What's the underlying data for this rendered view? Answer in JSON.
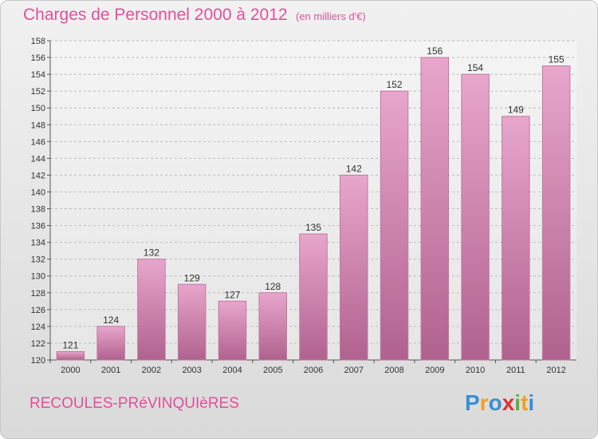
{
  "chart_data": {
    "type": "bar",
    "title": "Charges de Personnel 2000 à 2012",
    "subtitle": "(en milliers d'€)",
    "categories": [
      "2000",
      "2001",
      "2002",
      "2003",
      "2004",
      "2005",
      "2006",
      "2007",
      "2008",
      "2009",
      "2010",
      "2011",
      "2012"
    ],
    "values": [
      121,
      124,
      132,
      129,
      127,
      128,
      135,
      142,
      152,
      156,
      154,
      149,
      155
    ],
    "ylim": [
      120,
      158
    ],
    "yticks": [
      120,
      122,
      124,
      126,
      128,
      130,
      132,
      134,
      136,
      138,
      140,
      142,
      144,
      146,
      148,
      150,
      152,
      154,
      156,
      158
    ],
    "grid": true,
    "bar_color": "#d9769f"
  },
  "place_name": "RECOULES-PRéVINQUIèRES",
  "logo": {
    "letters": [
      {
        "ch": "P",
        "color": "#3a8fd6"
      },
      {
        "ch": "r",
        "color": "#f0a020"
      },
      {
        "ch": "o",
        "color": "#3a8fd6"
      },
      {
        "ch": "x",
        "color": "#e03030"
      },
      {
        "ch": "i",
        "color": "#5cb040"
      },
      {
        "ch": "t",
        "color": "#f0a020"
      },
      {
        "ch": "i",
        "color": "#3a8fd6"
      }
    ]
  }
}
